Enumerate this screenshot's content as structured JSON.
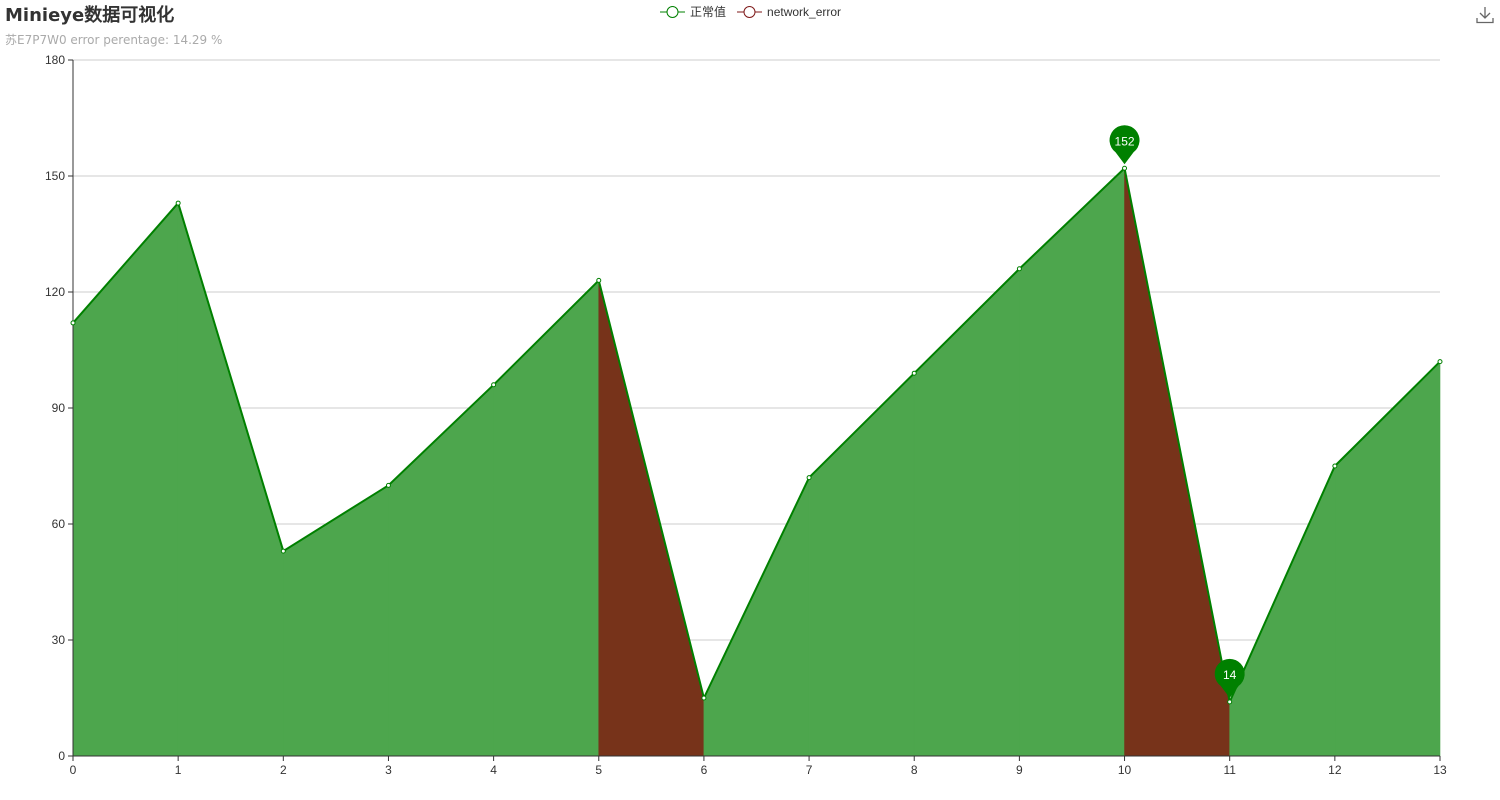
{
  "header": {
    "title": "Minieye数据可视化",
    "subtitle": "苏E7P7W0 error perentage: 14.29 %"
  },
  "legend": {
    "items": [
      {
        "label": "正常值",
        "color": "#008000"
      },
      {
        "label": "network_error",
        "color": "#7f1a1a"
      }
    ]
  },
  "toolbox": {
    "download_icon": "download-icon"
  },
  "colors": {
    "normal_fill": "#4da64d",
    "normal_line": "#008000",
    "error_fill": "#77331a",
    "pin": "#008000",
    "grid": "#cccccc",
    "axis": "#333333"
  },
  "chart_data": {
    "type": "area",
    "title": "Minieye数据可视化",
    "subtitle": "苏E7P7W0 error perentage: 14.29 %",
    "x": [
      0,
      1,
      2,
      3,
      4,
      5,
      6,
      7,
      8,
      9,
      10,
      11,
      12,
      13
    ],
    "series": [
      {
        "name": "正常值",
        "values": [
          112,
          143,
          53,
          70,
          96,
          123,
          15,
          72,
          99,
          126,
          152,
          14,
          75,
          102
        ]
      }
    ],
    "error_segments": [
      [
        5,
        6
      ],
      [
        10,
        11
      ]
    ],
    "error_series_name": "network_error",
    "mark_points": [
      {
        "x": 10,
        "value": 152,
        "label": "152"
      },
      {
        "x": 11,
        "value": 14,
        "label": "14"
      }
    ],
    "ylim": [
      0,
      180
    ],
    "yticks": [
      0,
      30,
      60,
      90,
      120,
      150,
      180
    ],
    "xlim": [
      0,
      13
    ],
    "grid": true,
    "legend_position": "top-center"
  }
}
